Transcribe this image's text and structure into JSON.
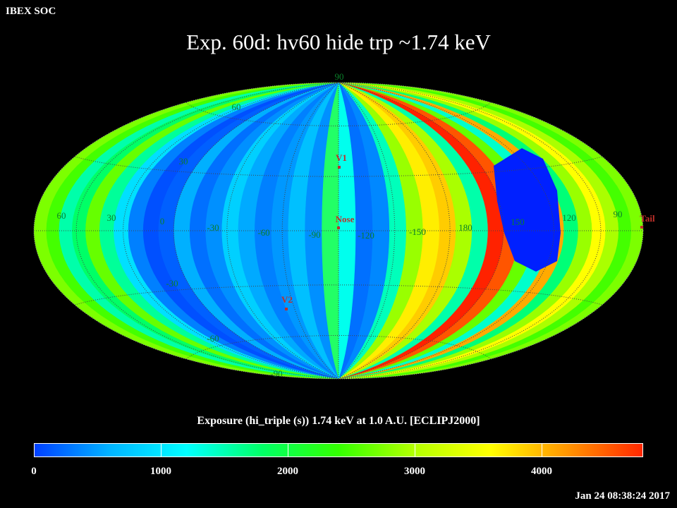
{
  "header": {
    "left_label": "IBEX SOC"
  },
  "title": "Exp.   60d: hv60 hide trp ~1.74 keV",
  "map": {
    "projection": "hammer-aitoff",
    "longitude_labels": [
      "60",
      "30",
      "0",
      "-30",
      "-60",
      "-90",
      "-120",
      "-150",
      "180",
      "150",
      "120",
      "90"
    ],
    "latitude_labels_top": [
      "90",
      "60",
      "30"
    ],
    "latitude_labels_bottom": [
      "-30",
      "-60",
      "-90"
    ],
    "markers": [
      {
        "label": "V1",
        "color": "#c0302a"
      },
      {
        "label": "Nose",
        "color": "#c0302a"
      },
      {
        "label": "V2",
        "color": "#c0302a"
      },
      {
        "label": "Tail",
        "color": "#c0302a"
      }
    ]
  },
  "colorbar": {
    "title": "Exposure (hi_triple (s))  1.74 keV at 1.0 A.U. [ECLIPJ2000]",
    "min": 0,
    "max": 4800,
    "ticks": [
      {
        "value": 0,
        "label": "0"
      },
      {
        "value": 1000,
        "label": "1000"
      },
      {
        "value": 2000,
        "label": "2000"
      },
      {
        "value": 3000,
        "label": "3000"
      },
      {
        "value": 4000,
        "label": "4000"
      }
    ],
    "colors": [
      "#0040ff",
      "#00b4ff",
      "#00ffff",
      "#00ff66",
      "#33ff00",
      "#b4ff00",
      "#ffff00",
      "#ff9600",
      "#ff2800"
    ]
  },
  "timestamp": "Jan 24 08:38:24 2017"
}
